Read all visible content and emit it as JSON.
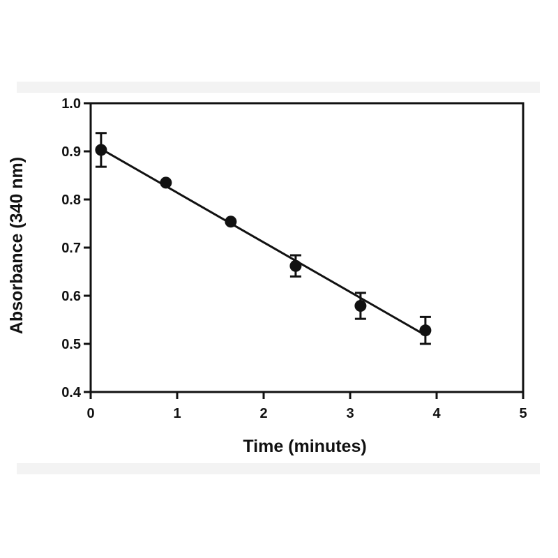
{
  "chart_data": {
    "type": "scatter",
    "title": "",
    "xlabel": "Time (minutes)",
    "ylabel": "Absorbance (340 nm)",
    "xlim": [
      0,
      5
    ],
    "ylim": [
      0.4,
      1.0
    ],
    "xticks": [
      "0",
      "1",
      "2",
      "3",
      "4",
      "5"
    ],
    "yticks": [
      "0.4",
      "0.5",
      "0.6",
      "0.7",
      "0.8",
      "0.9",
      "1.0"
    ],
    "grid": false,
    "legend": "none",
    "series": [
      {
        "points": [
          {
            "x": 0.12,
            "y": 0.903,
            "err": 0.035
          },
          {
            "x": 0.87,
            "y": 0.835,
            "err": 0
          },
          {
            "x": 1.62,
            "y": 0.754,
            "err": 0
          },
          {
            "x": 2.37,
            "y": 0.662,
            "err": 0.022
          },
          {
            "x": 3.12,
            "y": 0.579,
            "err": 0.027
          },
          {
            "x": 3.87,
            "y": 0.528,
            "err": 0.028
          }
        ]
      }
    ],
    "fit_line": {
      "x": [
        0.12,
        3.87
      ],
      "y": [
        0.905,
        0.518
      ]
    },
    "colors": {
      "marker": "#111111",
      "line": "#111111",
      "axes": "#111111"
    }
  }
}
